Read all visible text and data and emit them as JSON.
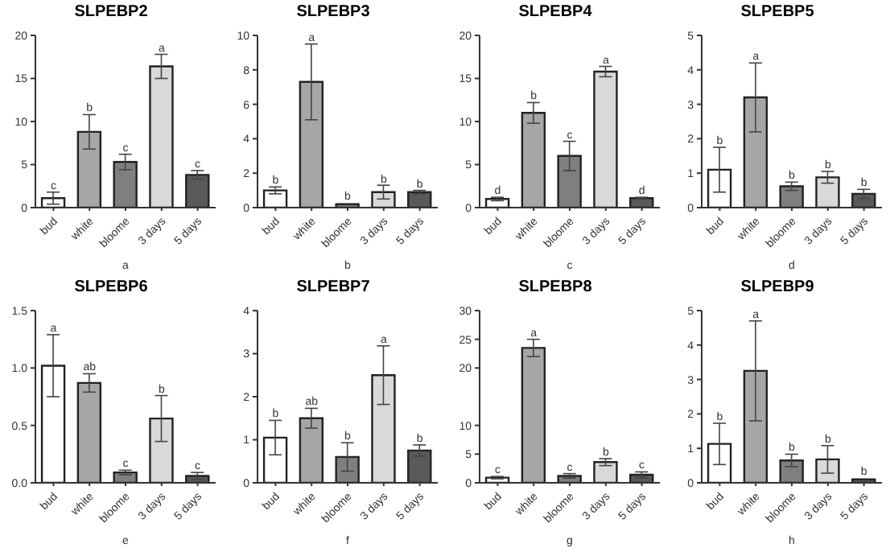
{
  "chart_data": [
    {
      "type": "bar",
      "title": "SLPEBP2",
      "xlabel": "a",
      "categories": [
        "bud",
        "white",
        "bloome",
        "3 days",
        "5 days"
      ],
      "values": [
        1.1,
        8.8,
        5.3,
        16.4,
        3.8
      ],
      "errors": [
        0.7,
        2,
        0.9,
        1.4,
        0.5
      ],
      "colors": [
        "#ffffff",
        "#a6a6a6",
        "#7f7f7f",
        "#d9d9d9",
        "#595959"
      ],
      "ylim": [
        0,
        20
      ],
      "yticks": [
        0,
        5,
        10,
        15,
        20
      ],
      "annotations": [
        {
          "text": "c",
          "x": "bud",
          "y": 1.8
        },
        {
          "text": "b",
          "x": "white",
          "y": 10.8
        },
        {
          "text": "c",
          "x": "bloome",
          "y": 6.2
        },
        {
          "text": "a",
          "x": "3 days",
          "y": 17.8
        },
        {
          "text": "c",
          "x": "5 days",
          "y": 4.3
        }
      ]
    },
    {
      "type": "bar",
      "title": "SLPEBP3",
      "xlabel": "b",
      "categories": [
        "bud",
        "white",
        "bloome",
        "3 days",
        "5 days"
      ],
      "values": [
        1,
        7.3,
        0.2,
        0.9,
        0.9
      ],
      "errors": [
        0.2,
        2.2,
        null,
        0.4,
        0.1
      ],
      "colors": [
        "#ffffff",
        "#a6a6a6",
        "#7f7f7f",
        "#d9d9d9",
        "#595959"
      ],
      "ylim": [
        0,
        10
      ],
      "yticks": [
        0,
        2,
        4,
        6,
        8,
        10
      ],
      "annotations": [
        {
          "text": "b",
          "x": "bud",
          "y": 1.2
        },
        {
          "text": "a",
          "x": "white",
          "y": 9.5
        },
        {
          "text": "b",
          "x": "bloome",
          "y": 0.3
        },
        {
          "text": "b",
          "x": "3 days",
          "y": 1.25
        },
        {
          "text": "b",
          "x": "5 days",
          "y": 1
        }
      ]
    },
    {
      "type": "bar",
      "title": "SLPEBP4",
      "xlabel": "c",
      "categories": [
        "bud",
        "white",
        "bloome",
        "3 days",
        "5 days"
      ],
      "values": [
        1,
        11,
        6,
        15.8,
        1.1
      ],
      "errors": [
        0.2,
        1.2,
        1.7,
        0.6,
        0.1
      ],
      "colors": [
        "#ffffff",
        "#a6a6a6",
        "#7f7f7f",
        "#d9d9d9",
        "#595959"
      ],
      "ylim": [
        0,
        20
      ],
      "yticks": [
        0,
        5,
        10,
        15,
        20
      ],
      "annotations": [
        {
          "text": "d",
          "x": "bud",
          "y": 1.2
        },
        {
          "text": "b",
          "x": "white",
          "y": 12.2
        },
        {
          "text": "c",
          "x": "bloome",
          "y": 7.7
        },
        {
          "text": "a",
          "x": "3 days",
          "y": 16.4
        },
        {
          "text": "d",
          "x": "5 days",
          "y": 1.2
        }
      ]
    },
    {
      "type": "bar",
      "title": "SLPEBP5",
      "xlabel": "d",
      "categories": [
        "bud",
        "white",
        "bloome",
        "3 days",
        "5 days"
      ],
      "values": [
        1.1,
        3.2,
        0.62,
        0.88,
        0.4
      ],
      "errors": [
        0.65,
        1,
        0.12,
        0.17,
        0.13
      ],
      "colors": [
        "#ffffff",
        "#a6a6a6",
        "#7f7f7f",
        "#d9d9d9",
        "#595959"
      ],
      "ylim": [
        0,
        5
      ],
      "yticks": [
        0,
        1,
        2,
        3,
        4,
        5
      ],
      "annotations": [
        {
          "text": "b",
          "x": "bud",
          "y": 1.75
        },
        {
          "text": "a",
          "x": "white",
          "y": 4.2
        },
        {
          "text": "b",
          "x": "bloome",
          "y": 0.74
        },
        {
          "text": "b",
          "x": "3 days",
          "y": 1.05
        },
        {
          "text": "b",
          "x": "5 days",
          "y": 0.53
        }
      ]
    },
    {
      "type": "bar",
      "title": "SLPEBP6",
      "xlabel": "e",
      "categories": [
        "bud",
        "white",
        "bloome",
        "3 days",
        "5 days"
      ],
      "values": [
        1.02,
        0.87,
        0.09,
        0.56,
        0.06
      ],
      "errors": [
        0.27,
        0.08,
        0.02,
        0.2,
        0.03
      ],
      "colors": [
        "#ffffff",
        "#a6a6a6",
        "#7f7f7f",
        "#d9d9d9",
        "#595959"
      ],
      "ylim": [
        0,
        1.5
      ],
      "yticks": [
        {
          "value": 0,
          "label": "0.0"
        },
        {
          "value": 0.5,
          "label": "0.5"
        },
        {
          "value": 1,
          "label": "1.0"
        },
        {
          "value": 1.5,
          "label": "1.5"
        }
      ],
      "annotations": [
        {
          "text": "a",
          "x": "bud",
          "y": 1.29
        },
        {
          "text": "ab",
          "x": "white",
          "y": 0.95
        },
        {
          "text": "c",
          "x": "bloome",
          "y": 0.11
        },
        {
          "text": "b",
          "x": "3 days",
          "y": 0.76
        },
        {
          "text": "c",
          "x": "5 days",
          "y": 0.09
        }
      ]
    },
    {
      "type": "bar",
      "title": "SLPEBP7",
      "xlabel": "f",
      "categories": [
        "bud",
        "white",
        "bloome",
        "3 days",
        "5 days"
      ],
      "values": [
        1.05,
        1.5,
        0.6,
        2.5,
        0.75
      ],
      "errors": [
        0.4,
        0.23,
        0.33,
        0.68,
        0.13
      ],
      "colors": [
        "#ffffff",
        "#a6a6a6",
        "#7f7f7f",
        "#d9d9d9",
        "#595959"
      ],
      "ylim": [
        0,
        4
      ],
      "yticks": [
        0,
        1,
        2,
        3,
        4
      ],
      "annotations": [
        {
          "text": "b",
          "x": "bud",
          "y": 1.45
        },
        {
          "text": "ab",
          "x": "white",
          "y": 1.73
        },
        {
          "text": "b",
          "x": "bloome",
          "y": 0.93
        },
        {
          "text": "a",
          "x": "3 days",
          "y": 3.18
        },
        {
          "text": "b",
          "x": "5 days",
          "y": 0.88
        }
      ]
    },
    {
      "type": "bar",
      "title": "SLPEBP8",
      "xlabel": "g",
      "categories": [
        "bud",
        "white",
        "bloome",
        "3 days",
        "5 days"
      ],
      "values": [
        0.9,
        23.5,
        1.2,
        3.6,
        1.4
      ],
      "errors": [
        0.2,
        1.5,
        0.4,
        0.6,
        0.5
      ],
      "colors": [
        "#ffffff",
        "#a6a6a6",
        "#7f7f7f",
        "#d9d9d9",
        "#595959"
      ],
      "ylim": [
        0,
        30
      ],
      "yticks": [
        0,
        5,
        10,
        20,
        25,
        30
      ],
      "annotations": [
        {
          "text": "c",
          "x": "bud",
          "y": 1.1
        },
        {
          "text": "a",
          "x": "white",
          "y": 25
        },
        {
          "text": "c",
          "x": "bloome",
          "y": 1.6
        },
        {
          "text": "b",
          "x": "3 days",
          "y": 4.2
        },
        {
          "text": "c",
          "x": "5 days",
          "y": 1.9
        }
      ]
    },
    {
      "type": "bar",
      "title": "SLPEBP9",
      "xlabel": "h",
      "categories": [
        "bud",
        "white",
        "bloome",
        "3 days",
        "5 days"
      ],
      "values": [
        1.13,
        3.25,
        0.65,
        0.68,
        0.1
      ],
      "errors": [
        0.6,
        1.45,
        0.18,
        0.4,
        null
      ],
      "colors": [
        "#ffffff",
        "#a6a6a6",
        "#7f7f7f",
        "#d9d9d9",
        "#595959"
      ],
      "ylim": [
        0,
        5
      ],
      "yticks": [
        0,
        1,
        2,
        3,
        4,
        5
      ],
      "annotations": [
        {
          "text": "b",
          "x": "bud",
          "y": 1.73
        },
        {
          "text": "a",
          "x": "white",
          "y": 4.7
        },
        {
          "text": "b",
          "x": "bloome",
          "y": 0.83
        },
        {
          "text": "b",
          "x": "3 days",
          "y": 1.08
        },
        {
          "text": "b",
          "x": "5 days",
          "y": 0.15
        }
      ]
    }
  ]
}
